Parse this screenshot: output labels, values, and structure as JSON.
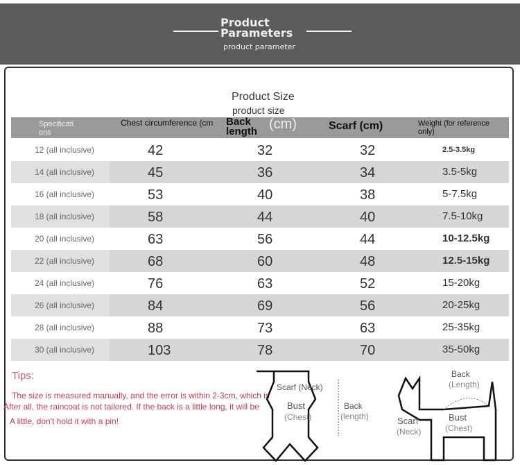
{
  "banner": {
    "title_line1": "Product",
    "title_line2": "Parameters",
    "subtitle": "product parameter"
  },
  "size_title": "Product Size",
  "size_subtitle": "product size",
  "table": {
    "headers": {
      "spec": "Specificati ons",
      "chest": "Chest circumference (cm",
      "back": "Back length",
      "back_unit": "(cm)",
      "scarf": "Scarf (cm)",
      "weight": "Weight (for reference only)"
    },
    "rows": [
      {
        "spec": "12 (all inclusive)",
        "chest": "42",
        "back": "32",
        "scarf": "32",
        "weight": "2.5-3.5kg"
      },
      {
        "spec": "14 (all inclusive)",
        "chest": "45",
        "back": "36",
        "scarf": "34",
        "weight": "3.5-5kg"
      },
      {
        "spec": "16 (all inclusive)",
        "chest": "53",
        "back": "40",
        "scarf": "38",
        "weight": "5-7.5kg"
      },
      {
        "spec": "18 (all inclusive)",
        "chest": "58",
        "back": "44",
        "scarf": "40",
        "weight": "7.5-10kg"
      },
      {
        "spec": "20 (all inclusive)",
        "chest": "63",
        "back": "56",
        "scarf": "44",
        "weight": "10-12.5kg"
      },
      {
        "spec": "22 (all inclusive)",
        "chest": "68",
        "back": "60",
        "scarf": "48",
        "weight": "12.5-15kg"
      },
      {
        "spec": "24 (all inclusive)",
        "chest": "76",
        "back": "63",
        "scarf": "52",
        "weight": "15-20kg"
      },
      {
        "spec": "26 (all inclusive)",
        "chest": "84",
        "back": "69",
        "scarf": "56",
        "weight": "20-25kg"
      },
      {
        "spec": "28 (all inclusive)",
        "chest": "88",
        "back": "73",
        "scarf": "63",
        "weight": "25-35kg"
      },
      {
        "spec": "30 (all inclusive)",
        "chest": "103",
        "back": "78",
        "scarf": "70",
        "weight": "35-50kg"
      }
    ]
  },
  "tips": {
    "title": "Tips:",
    "line1": "The size is measured manually, and the error is within 2-3cm, which is",
    "line2": "After all, the raincoat is not tailored. If the back is a little long, it will be",
    "line3": "A little, don't hold it with a pin!"
  },
  "diagram": {
    "scarf": "Scarf (Neck)",
    "bust": "Bust",
    "chest": "(Chest)",
    "back": "Back",
    "length": "(length)",
    "dog_back": "Back",
    "dog_length": "(Length)",
    "dog_scarf": "Scarf",
    "dog_neck": "(Neck)",
    "dog_bust": "Bust",
    "dog_chest": "(Chest)"
  }
}
